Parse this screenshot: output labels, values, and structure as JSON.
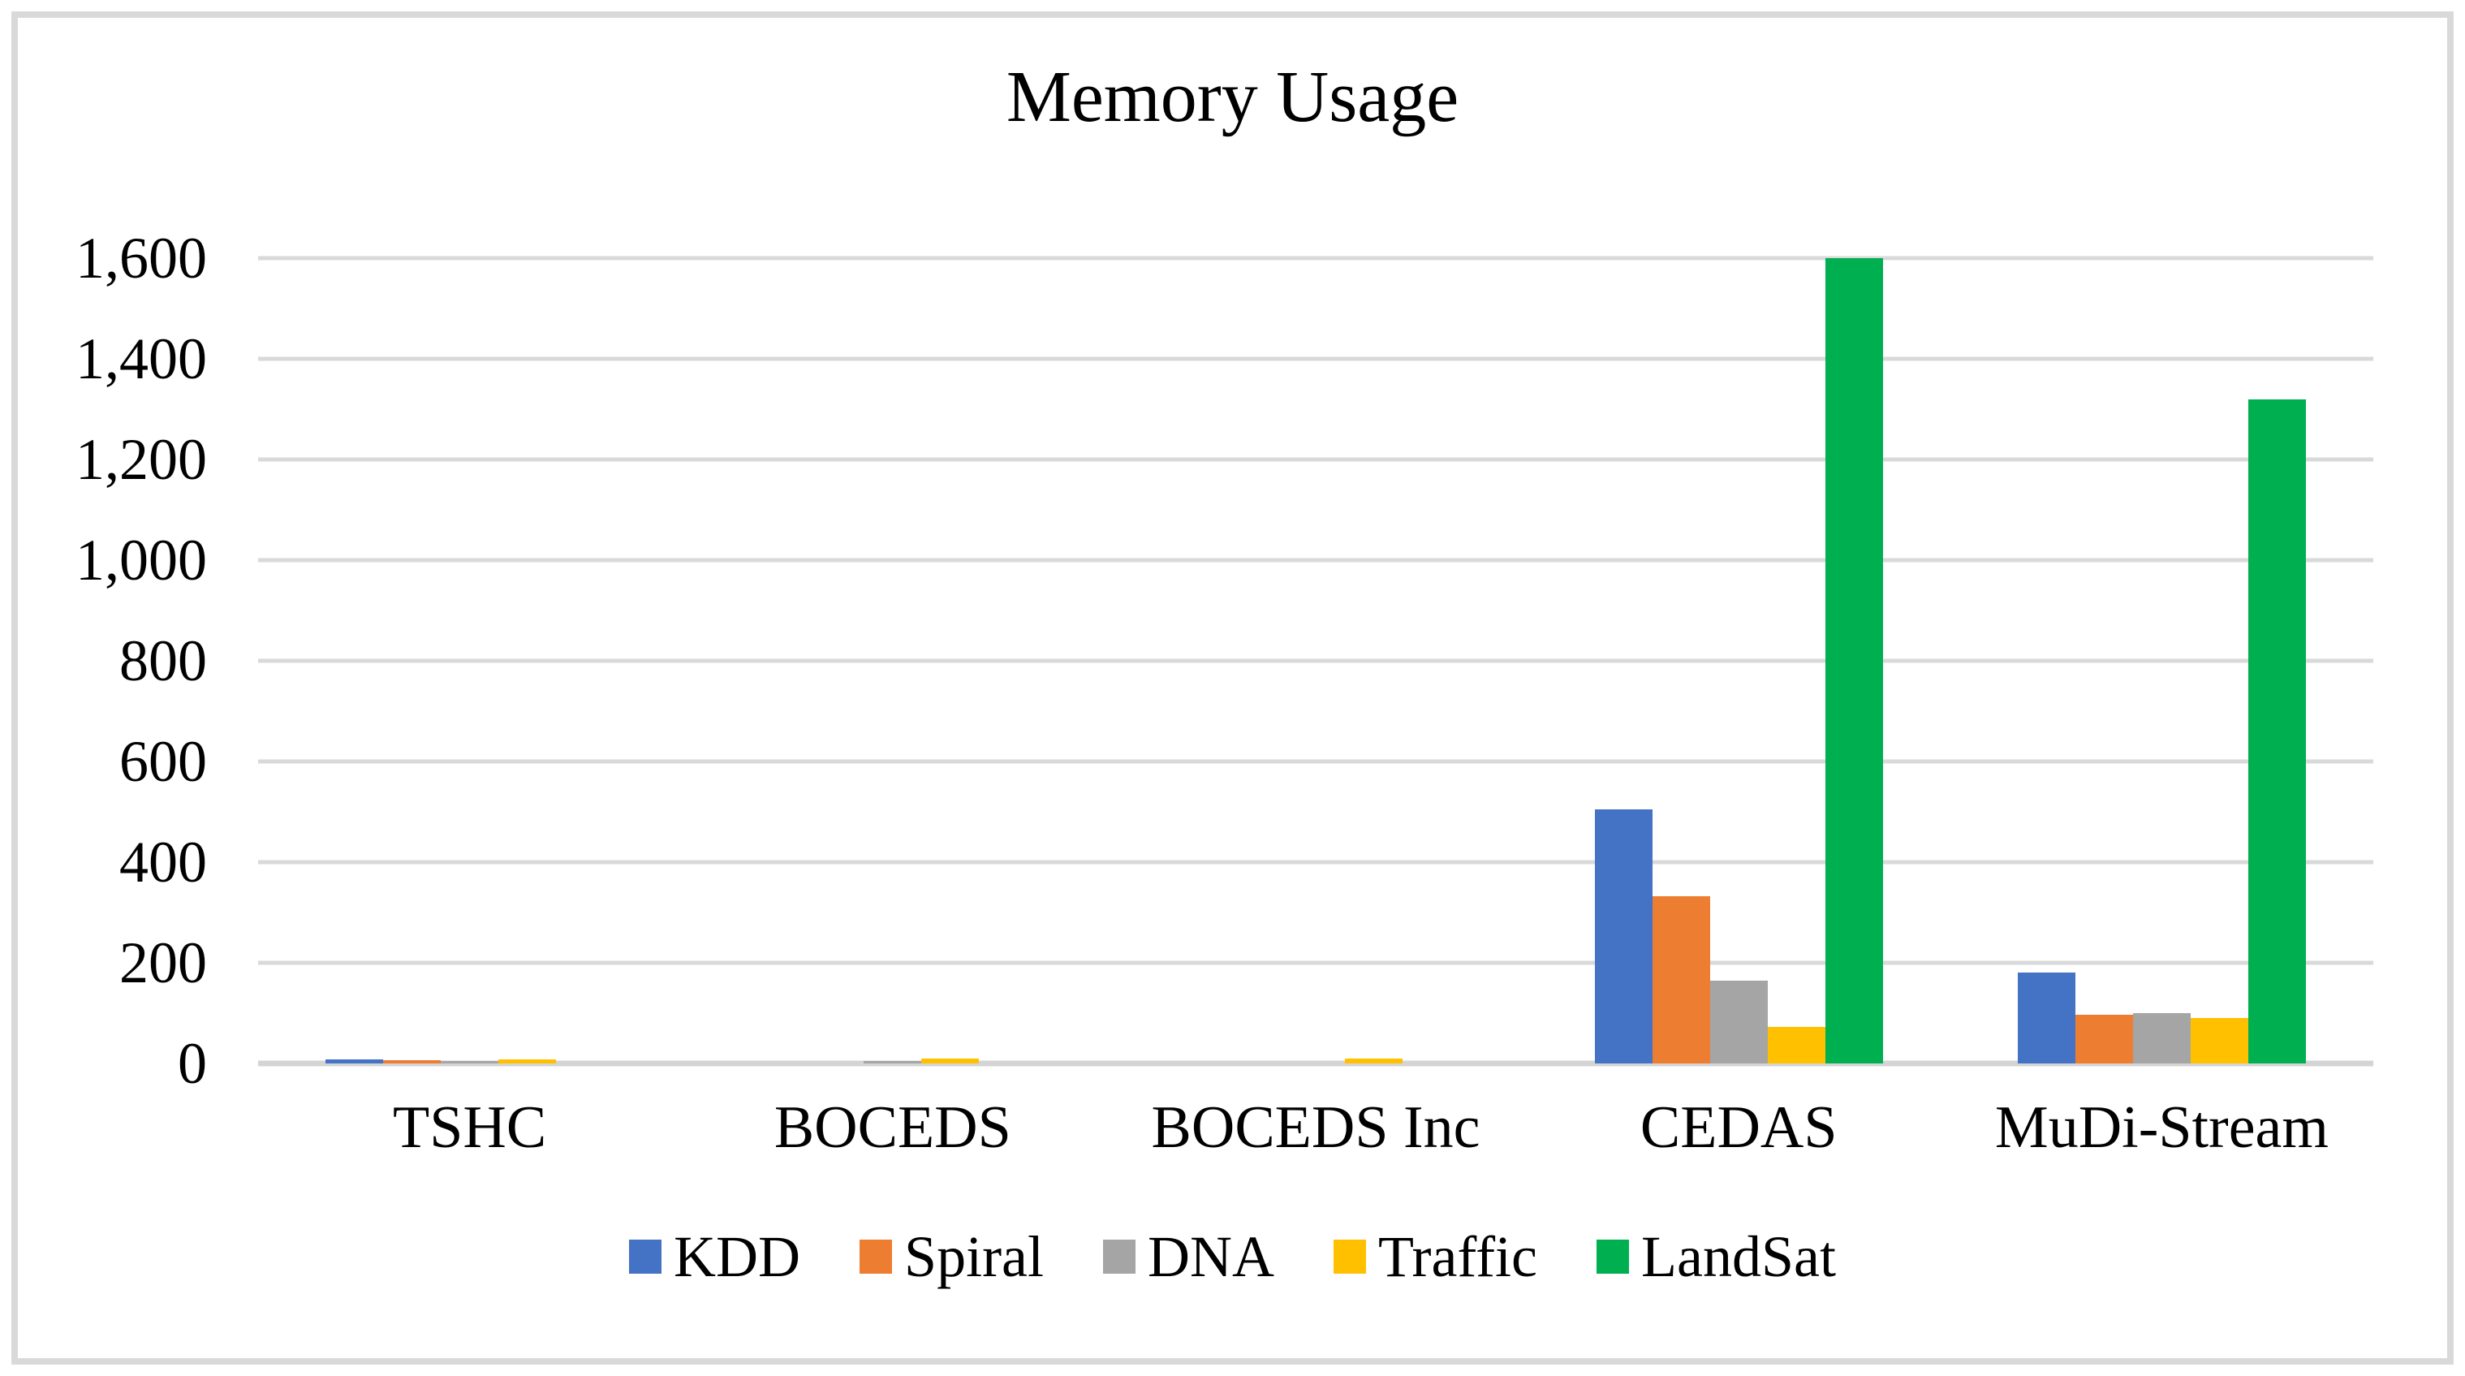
{
  "chart_data": {
    "type": "bar",
    "title": "Memory Usage",
    "categories": [
      "TSHC",
      "BOCEDS",
      "BOCEDS Inc",
      "CEDAS",
      "MuDi-Stream"
    ],
    "series": [
      {
        "name": "KDD",
        "color": "#4472C4",
        "values": [
          8,
          0,
          0,
          505,
          180
        ]
      },
      {
        "name": "Spiral",
        "color": "#ED7D31",
        "values": [
          6,
          0,
          0,
          333,
          97
        ]
      },
      {
        "name": "DNA",
        "color": "#A5A5A5",
        "values": [
          5,
          5,
          0,
          165,
          100
        ]
      },
      {
        "name": "Traffic",
        "color": "#FFC000",
        "values": [
          8,
          9,
          9,
          73,
          90
        ]
      },
      {
        "name": "LandSat",
        "color": "#00B050",
        "values": [
          0,
          0,
          0,
          1600,
          1320
        ]
      }
    ],
    "xlabel": "",
    "ylabel": "",
    "ylim": [
      0,
      1600
    ],
    "ytick_interval": 200,
    "yticks": [
      0,
      200,
      400,
      600,
      800,
      1000,
      1200,
      1400,
      1600
    ],
    "ytick_labels": [
      "0",
      "200",
      "400",
      "600",
      "800",
      "1,000",
      "1,200",
      "1,400",
      "1,600"
    ],
    "grid": "horizontal",
    "legend_position": "bottom",
    "gridline_color": "#d9d9d9",
    "border_color": "#d9d9d9"
  }
}
